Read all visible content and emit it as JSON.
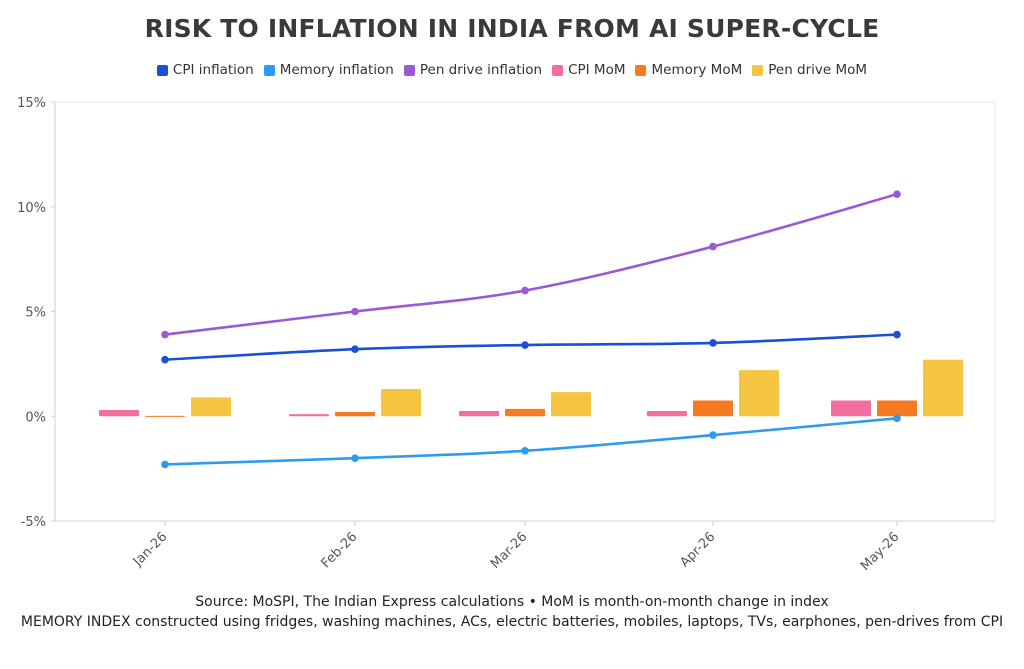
{
  "chart_data": {
    "type": "line",
    "title": "RISK TO INFLATION IN INDIA FROM AI SUPER-CYCLE",
    "categories": [
      "Jan-26",
      "Feb-26",
      "Mar-26",
      "Apr-26",
      "May-26"
    ],
    "y_ticks": [
      "15%",
      "10%",
      "5%",
      "0%",
      "-5%"
    ],
    "ylim": [
      -5,
      15
    ],
    "grid": false,
    "legend_position": "top-center",
    "series": [
      {
        "name": "CPI inflation",
        "kind": "line",
        "color": "#1a4fd6",
        "values": [
          2.7,
          3.2,
          3.4,
          3.5,
          3.9
        ]
      },
      {
        "name": "Memory inflation",
        "kind": "line",
        "color": "#2e9bf0",
        "values": [
          -2.3,
          -2.0,
          -1.65,
          -0.9,
          -0.1
        ]
      },
      {
        "name": "Pen drive inflation",
        "kind": "line",
        "color": "#9b59d6",
        "values": [
          3.9,
          5.0,
          6.0,
          8.1,
          10.6
        ]
      },
      {
        "name": "CPI MoM",
        "kind": "bar",
        "color": "#f06fa0",
        "values": [
          0.3,
          0.1,
          0.25,
          0.25,
          0.75
        ]
      },
      {
        "name": "Memory MoM",
        "kind": "bar",
        "color": "#f57a22",
        "values": [
          0.02,
          0.2,
          0.35,
          0.75,
          0.75
        ]
      },
      {
        "name": "Pen drive MoM",
        "kind": "bar",
        "color": "#f5c542",
        "values": [
          0.9,
          1.3,
          1.15,
          2.2,
          2.7
        ]
      }
    ]
  },
  "footer": {
    "source": "Source: MoSPI, The Indian Express calculations • MoM is month-on-month change in index",
    "note": "MEMORY INDEX constructed using fridges, washing machines, ACs, electric batteries, mobiles, laptops, TVs, earphones, pen-drives from CPI"
  }
}
